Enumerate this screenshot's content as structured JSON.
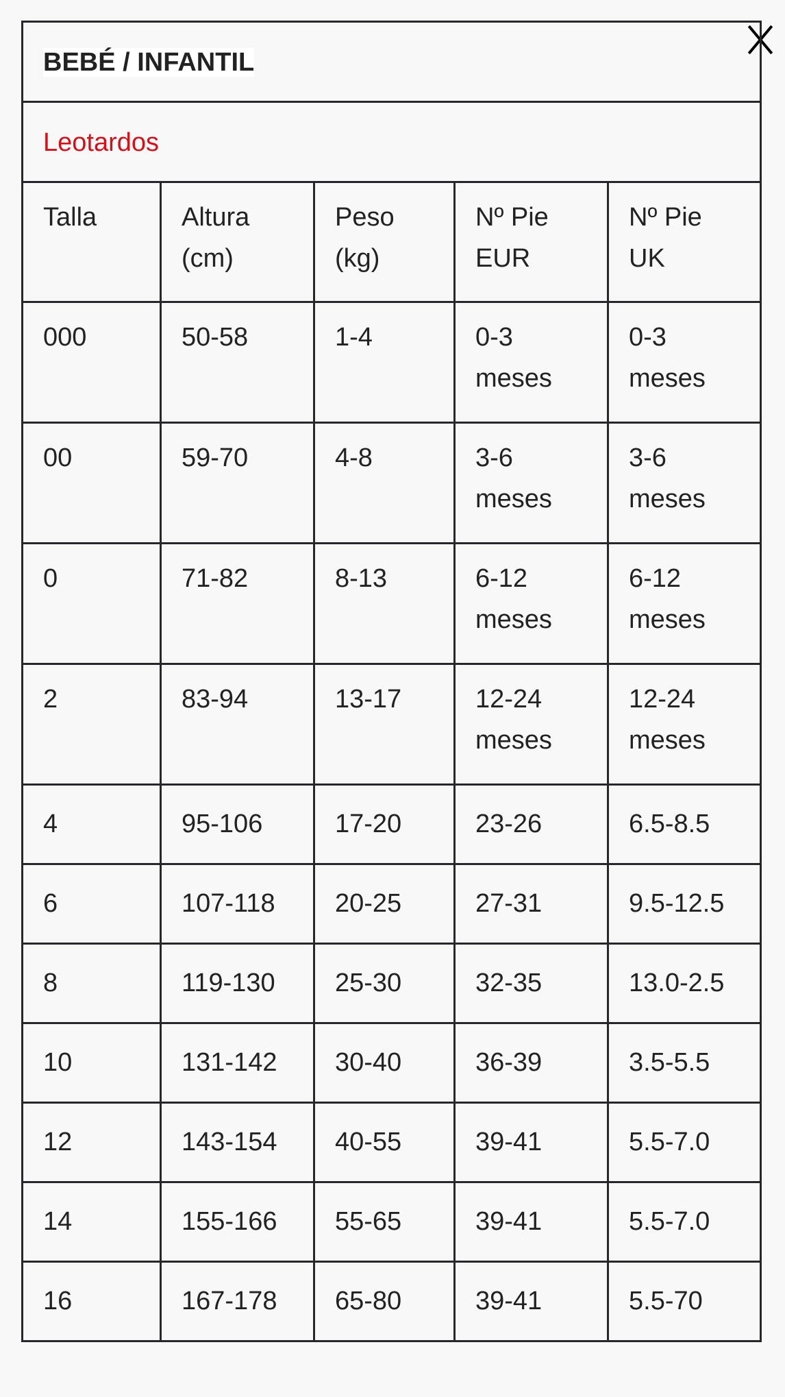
{
  "title": "BEBÉ / INFANTIL",
  "subtitle": "Leotardos",
  "colors": {
    "subtitle": "#d0121b",
    "border": "#25272b",
    "background": "#f8f8f8"
  },
  "close_icon": "close-x-icon",
  "headers": [
    [
      "Talla",
      ""
    ],
    [
      "Altura",
      "(cm)"
    ],
    [
      "Peso",
      "(kg)"
    ],
    [
      "Nº Pie",
      "EUR"
    ],
    [
      "Nº Pie",
      "UK"
    ]
  ],
  "rows": [
    [
      [
        "000"
      ],
      [
        "50-58"
      ],
      [
        "1-4"
      ],
      [
        "0-3",
        "meses"
      ],
      [
        "0-3",
        "meses"
      ]
    ],
    [
      [
        "00"
      ],
      [
        "59-70"
      ],
      [
        "4-8"
      ],
      [
        "3-6",
        "meses"
      ],
      [
        "3-6",
        "meses"
      ]
    ],
    [
      [
        "0"
      ],
      [
        "71-82"
      ],
      [
        "8-13"
      ],
      [
        "6-12",
        "meses"
      ],
      [
        "6-12",
        "meses"
      ]
    ],
    [
      [
        "2"
      ],
      [
        "83-94"
      ],
      [
        "13-17"
      ],
      [
        "12-24",
        "meses"
      ],
      [
        "12-24",
        "meses"
      ]
    ],
    [
      [
        "4"
      ],
      [
        "95-106"
      ],
      [
        "17-20"
      ],
      [
        "23-26"
      ],
      [
        "6.5-8.5"
      ]
    ],
    [
      [
        "6"
      ],
      [
        "107-118"
      ],
      [
        "20-25"
      ],
      [
        "27-31"
      ],
      [
        "9.5-12.5"
      ]
    ],
    [
      [
        "8"
      ],
      [
        "119-130"
      ],
      [
        "25-30"
      ],
      [
        "32-35"
      ],
      [
        "13.0-2.5"
      ]
    ],
    [
      [
        "10"
      ],
      [
        "131-142"
      ],
      [
        "30-40"
      ],
      [
        "36-39"
      ],
      [
        "3.5-5.5"
      ]
    ],
    [
      [
        "12"
      ],
      [
        "143-154"
      ],
      [
        "40-55"
      ],
      [
        "39-41"
      ],
      [
        "5.5-7.0"
      ]
    ],
    [
      [
        "14"
      ],
      [
        "155-166"
      ],
      [
        "55-65"
      ],
      [
        "39-41"
      ],
      [
        "5.5-7.0"
      ]
    ],
    [
      [
        "16"
      ],
      [
        "167-178"
      ],
      [
        "65-80"
      ],
      [
        "39-41"
      ],
      [
        "5.5-70"
      ]
    ]
  ]
}
